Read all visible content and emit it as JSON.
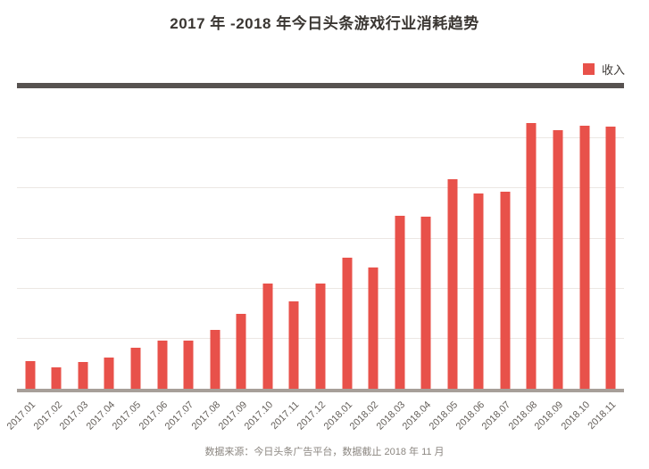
{
  "title": "2017 年 -2018 年今日头条游戏行业消耗趋势",
  "legend": {
    "label": "收入",
    "swatch_color": "#e8514a"
  },
  "footer": "数据来源：今日头条广告平台，数据截止 2018 年 11 月",
  "colors": {
    "bar": "#e8514a",
    "top_rule": "#575250",
    "axis_line": "#a79f99",
    "gridline": "#ece7e3",
    "title_text": "#3a3632",
    "axis_text": "#645f5a",
    "footer_text": "#8b8680"
  },
  "chart_data": {
    "type": "bar",
    "title": "2017 年 -2018 年今日头条游戏行业消耗趋势",
    "xlabel": "",
    "ylabel": "",
    "categories": [
      "2017.01",
      "2017.02",
      "2017.03",
      "2017.04",
      "2017.05",
      "2017.06",
      "2017.07",
      "2017.08",
      "2017.09",
      "2017.10",
      "2017.11",
      "2017.12",
      "2018.01",
      "2018.02",
      "2018.03",
      "2018.04",
      "2018.05",
      "2018.06",
      "2018.07",
      "2018.08",
      "2018.09",
      "2018.10",
      "2018.11"
    ],
    "series": [
      {
        "name": "收入",
        "values": [
          0.55,
          0.43,
          0.53,
          0.63,
          0.82,
          0.96,
          0.97,
          1.18,
          1.49,
          2.11,
          1.75,
          2.11,
          2.61,
          2.42,
          3.46,
          3.44,
          4.18,
          3.9,
          3.93,
          5.3,
          5.17,
          5.26,
          5.24
        ]
      }
    ],
    "y_axis": {
      "labels_visible": false,
      "min": 0,
      "max": 6,
      "gridline_interval": 1,
      "note": "no numeric tick labels shown; values are relative units, 1 = one gridline interval"
    },
    "x_axis": {
      "label_rotation_deg": -45
    },
    "grid": true,
    "legend_position": "top-right"
  }
}
